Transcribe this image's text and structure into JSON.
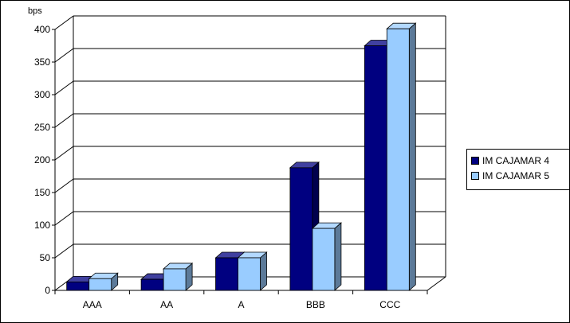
{
  "chart_data": {
    "type": "bar",
    "ylabel": "bps",
    "categories": [
      "AAA",
      "AA",
      "A",
      "BBB",
      "CCC"
    ],
    "series": [
      {
        "name": "IM CAJAMAR 4",
        "values": [
          13,
          17,
          50,
          188,
          375
        ],
        "color": "#000080"
      },
      {
        "name": "IM CAJAMAR 5",
        "values": [
          18,
          33,
          50,
          95,
          401
        ],
        "color": "#99CCFF"
      }
    ],
    "ylim": [
      0,
      400
    ],
    "yticks": [
      0,
      50,
      100,
      150,
      200,
      250,
      300,
      350,
      400
    ],
    "grid": true,
    "legend": "right",
    "three_d": true
  }
}
